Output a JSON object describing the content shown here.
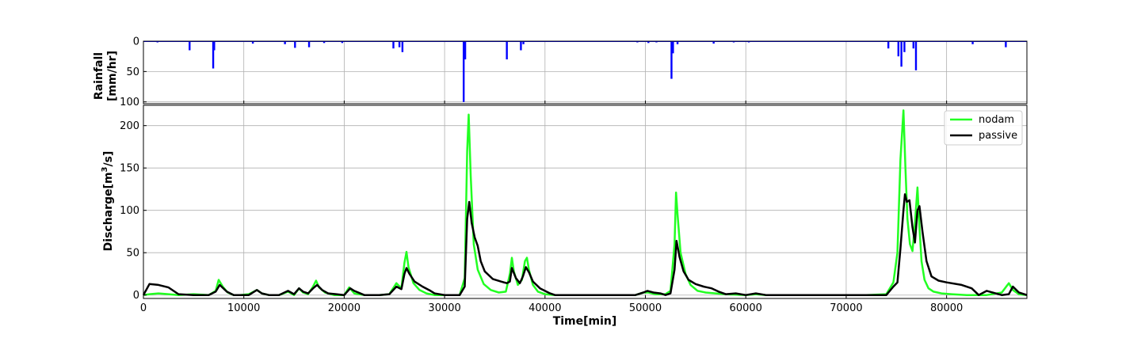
{
  "chart_data": [
    {
      "type": "bar",
      "panel": "rainfall",
      "ylabel_line1": "Rainfall",
      "ylabel_line2": "[mm/hr]",
      "xlim": [
        0,
        88000
      ],
      "ylim": [
        0,
        103
      ],
      "y_inverted": true,
      "yticks": [
        0,
        50,
        100
      ],
      "grid": true,
      "color": "#0000ff",
      "events": [
        {
          "x": 1400,
          "value": 2
        },
        {
          "x": 4600,
          "value": 15
        },
        {
          "x": 6950,
          "value": 45
        },
        {
          "x": 7050,
          "value": 15
        },
        {
          "x": 10900,
          "value": 4
        },
        {
          "x": 14100,
          "value": 5
        },
        {
          "x": 15100,
          "value": 11
        },
        {
          "x": 16500,
          "value": 10
        },
        {
          "x": 18000,
          "value": 3
        },
        {
          "x": 19800,
          "value": 3
        },
        {
          "x": 24900,
          "value": 12
        },
        {
          "x": 25500,
          "value": 10
        },
        {
          "x": 25800,
          "value": 18
        },
        {
          "x": 31900,
          "value": 100
        },
        {
          "x": 32050,
          "value": 30
        },
        {
          "x": 36200,
          "value": 30
        },
        {
          "x": 37600,
          "value": 15
        },
        {
          "x": 37850,
          "value": 5
        },
        {
          "x": 49200,
          "value": 2
        },
        {
          "x": 50300,
          "value": 3
        },
        {
          "x": 51100,
          "value": 2
        },
        {
          "x": 52600,
          "value": 62
        },
        {
          "x": 52750,
          "value": 20
        },
        {
          "x": 53200,
          "value": 5
        },
        {
          "x": 56800,
          "value": 4
        },
        {
          "x": 58800,
          "value": 2
        },
        {
          "x": 60300,
          "value": 2
        },
        {
          "x": 74200,
          "value": 12
        },
        {
          "x": 75200,
          "value": 25
        },
        {
          "x": 75500,
          "value": 42
        },
        {
          "x": 75800,
          "value": 18
        },
        {
          "x": 76700,
          "value": 12
        },
        {
          "x": 76950,
          "value": 48
        },
        {
          "x": 82600,
          "value": 5
        },
        {
          "x": 85900,
          "value": 10
        }
      ]
    },
    {
      "type": "line",
      "panel": "discharge",
      "xlabel": "Time[min]",
      "ylabel_main": "Discharge[m",
      "ylabel_sup": "3",
      "ylabel_tail": "/s]",
      "xlim": [
        0,
        88000
      ],
      "ylim": [
        -4,
        224
      ],
      "xticks": [
        0,
        10000,
        20000,
        30000,
        40000,
        50000,
        60000,
        70000,
        80000
      ],
      "yticks": [
        0,
        50,
        100,
        150,
        200
      ],
      "grid": true,
      "legend_position": "top-right",
      "series": [
        {
          "name": "nodam",
          "color": "#22ff22",
          "x": [
            0,
            600,
            1500,
            2500,
            3500,
            5000,
            6500,
            7200,
            7500,
            7900,
            8400,
            9000,
            9600,
            10500,
            11300,
            11800,
            12500,
            13500,
            14400,
            15000,
            15500,
            15900,
            16400,
            16900,
            17200,
            17500,
            18100,
            19000,
            20000,
            20500,
            21000,
            22000,
            23500,
            24500,
            25200,
            25700,
            26000,
            26200,
            26400,
            26900,
            27500,
            28200,
            29000,
            30000,
            31500,
            32000,
            32250,
            32400,
            32600,
            32900,
            33300,
            33900,
            34600,
            35400,
            36100,
            36500,
            36700,
            36900,
            37300,
            37700,
            38000,
            38200,
            38400,
            38800,
            39300,
            40000,
            41000,
            45000,
            49000,
            49800,
            50300,
            51000,
            52000,
            52500,
            52900,
            53050,
            53200,
            53500,
            54000,
            54500,
            55200,
            56000,
            57000,
            58000,
            60000,
            61000,
            62000,
            66000,
            72000,
            74000,
            74700,
            75100,
            75400,
            75700,
            75900,
            76100,
            76350,
            76600,
            76850,
            77100,
            77300,
            77500,
            77800,
            78200,
            78700,
            79500,
            80500,
            82000,
            83000,
            84000,
            85500,
            86200,
            86600,
            87200,
            88000
          ],
          "y": [
            0,
            1,
            2,
            1,
            0,
            1,
            0,
            5,
            18,
            10,
            3,
            0,
            0,
            1,
            6,
            2,
            0,
            0,
            4,
            0,
            8,
            3,
            1,
            10,
            17,
            9,
            3,
            0,
            0,
            9,
            2,
            0,
            0,
            1,
            14,
            8,
            38,
            51,
            33,
            14,
            6,
            2,
            0,
            0,
            0,
            20,
            170,
            213,
            140,
            60,
            30,
            13,
            6,
            3,
            4,
            25,
            44,
            28,
            12,
            18,
            40,
            44,
            30,
            12,
            4,
            1,
            0,
            0,
            0,
            3,
            3,
            1,
            1,
            5,
            60,
            121,
            95,
            50,
            25,
            12,
            5,
            3,
            2,
            1,
            0,
            1,
            0,
            0,
            0,
            1,
            15,
            50,
            160,
            218,
            150,
            90,
            60,
            52,
            85,
            127,
            80,
            40,
            18,
            8,
            4,
            2,
            1,
            0,
            0,
            0,
            3,
            14,
            6,
            1,
            0
          ]
        },
        {
          "name": "passive",
          "color": "#000000",
          "x": [
            0,
            600,
            1500,
            2500,
            3500,
            5000,
            6500,
            7200,
            7600,
            8300,
            9000,
            10500,
            11300,
            11800,
            12500,
            13500,
            14400,
            15000,
            15500,
            15900,
            16400,
            16900,
            17300,
            17800,
            18400,
            19200,
            20000,
            20600,
            21000,
            22000,
            23500,
            24500,
            25200,
            25700,
            26000,
            26200,
            26500,
            27000,
            27800,
            28600,
            29000,
            30000,
            31500,
            32000,
            32250,
            32450,
            32700,
            33000,
            33300,
            33600,
            34000,
            34800,
            35600,
            36200,
            36500,
            36700,
            37100,
            37500,
            37800,
            38100,
            38400,
            38800,
            39500,
            40500,
            41000,
            45000,
            49000,
            49800,
            50200,
            50800,
            51500,
            52000,
            52500,
            52900,
            53100,
            53400,
            53800,
            54300,
            55000,
            55800,
            56600,
            57300,
            58000,
            59000,
            60000,
            61000,
            62000,
            65000,
            70000,
            74000,
            74700,
            75100,
            75400,
            75700,
            75850,
            76050,
            76300,
            76600,
            76850,
            77100,
            77300,
            77600,
            78000,
            78500,
            79200,
            80000,
            81500,
            82500,
            83200,
            84000,
            85500,
            86200,
            86600,
            87200,
            88000
          ],
          "y": [
            0,
            13,
            12,
            9,
            1,
            0,
            0,
            4,
            12,
            4,
            0,
            0,
            6,
            2,
            0,
            0,
            5,
            1,
            8,
            4,
            2,
            8,
            12,
            6,
            2,
            1,
            0,
            8,
            5,
            0,
            0,
            1,
            10,
            7,
            25,
            32,
            25,
            16,
            10,
            5,
            2,
            0,
            0,
            10,
            90,
            110,
            85,
            68,
            58,
            40,
            28,
            19,
            16,
            14,
            16,
            32,
            20,
            14,
            22,
            33,
            27,
            16,
            8,
            2,
            0,
            0,
            0,
            3,
            5,
            3,
            2,
            0,
            2,
            30,
            64,
            45,
            28,
            18,
            13,
            10,
            8,
            4,
            1,
            2,
            0,
            2,
            0,
            0,
            0,
            0,
            10,
            15,
            55,
            100,
            119,
            110,
            112,
            80,
            62,
            100,
            105,
            75,
            40,
            22,
            17,
            15,
            12,
            8,
            0,
            5,
            0,
            1,
            10,
            3,
            0
          ]
        }
      ]
    }
  ]
}
